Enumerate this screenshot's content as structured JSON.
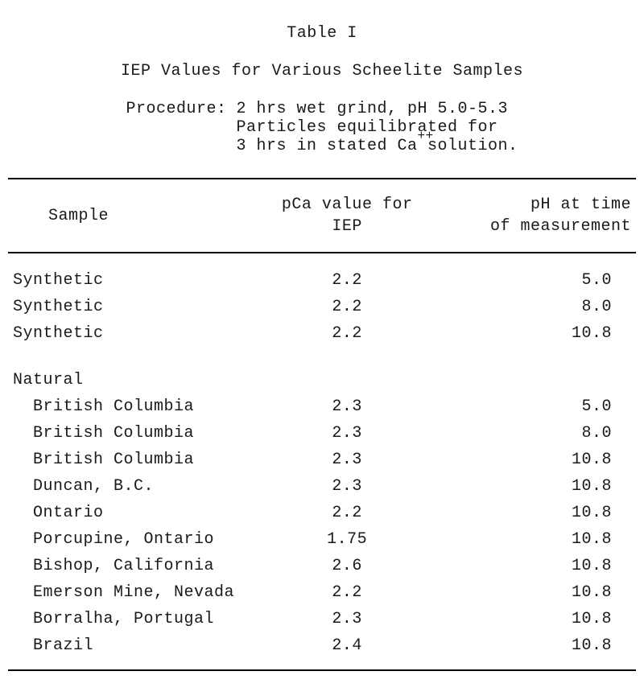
{
  "title": {
    "table_label": "Table I",
    "caption": "IEP Values for Various Scheelite Samples"
  },
  "procedure": {
    "label": "Procedure:",
    "line1_pre": "2 hrs wet grind, pH 5.0-5.3",
    "line2": "Particles equilibrated for",
    "line3_pre": "3 hrs in stated Ca",
    "line3_sup": "++",
    "line3_post": " solution."
  },
  "columns": {
    "sample": "Sample",
    "pca_l1": "pCa value for",
    "pca_l2": "IEP",
    "ph_l1": "pH at time",
    "ph_l2": "of measurement"
  },
  "rows": [
    {
      "sample": "Synthetic",
      "pca": "2.2",
      "ph": "5.0"
    },
    {
      "sample": "Synthetic",
      "pca": "2.2",
      "ph": "8.0"
    },
    {
      "sample": "Synthetic",
      "pca": "2.2",
      "ph": "10.8"
    }
  ],
  "section_label": "Natural",
  "rows2": [
    {
      "sample": "  British Columbia",
      "pca": "2.3",
      "ph": "5.0"
    },
    {
      "sample": "  British Columbia",
      "pca": "2.3",
      "ph": "8.0"
    },
    {
      "sample": "  British Columbia",
      "pca": "2.3",
      "ph": "10.8"
    },
    {
      "sample": "  Duncan, B.C.",
      "pca": "2.3",
      "ph": "10.8"
    },
    {
      "sample": "  Ontario",
      "pca": "2.2",
      "ph": "10.8"
    },
    {
      "sample": "  Porcupine, Ontario",
      "pca": "1.75",
      "ph": "10.8"
    },
    {
      "sample": "  Bishop, California",
      "pca": "2.6",
      "ph": "10.8"
    },
    {
      "sample": "  Emerson Mine, Nevada",
      "pca": "2.2",
      "ph": "10.8"
    },
    {
      "sample": "  Borralha, Portugal",
      "pca": "2.3",
      "ph": "10.8"
    },
    {
      "sample": "  Brazil",
      "pca": "2.4",
      "ph": "10.8"
    }
  ]
}
